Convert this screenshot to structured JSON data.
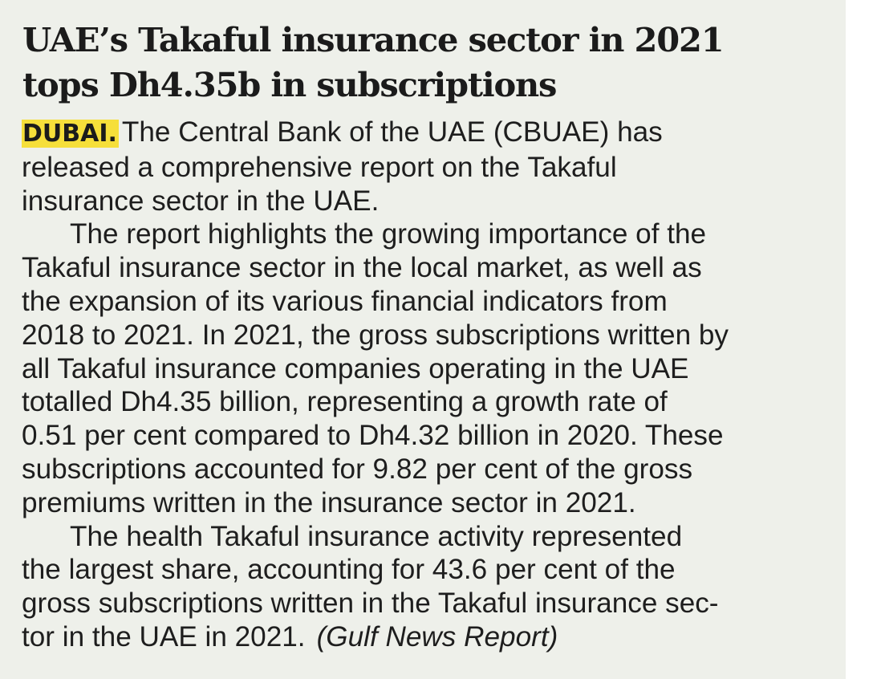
{
  "headline": {
    "lines": [
      "UAE’s Takaful insurance sector in 2021",
      "tops Dh4.35b in subscriptions"
    ]
  },
  "article": {
    "dateline": "DUBAI.",
    "lines": [
      "The Central Bank of the UAE (CBUAE) has",
      "released a comprehensive report on the Takaful",
      "insurance sector in the UAE.",
      "The report highlights the growing importance of the",
      "Takaful insurance sector in the local market, as well as",
      "the expansion of its various financial indicators from",
      "2018 to 2021. In 2021, the gross subscriptions written by",
      "all Takaful insurance companies operating in the UAE",
      "totalled Dh4.35 billion, representing a growth rate of",
      "0.51 per cent compared to Dh4.32 billion in 2020. These",
      "subscriptions accounted for 9.82 per cent of the gross",
      "premiums written in the insurance sector in 2021.",
      "The health Takaful insurance activity represented",
      "the largest share, accounting for 43.6 per cent of the",
      "gross subscriptions written in the Takaful insurance sec-",
      "tor in the UAE in 2021."
    ],
    "credit": "(Gulf News Report)"
  },
  "colors": {
    "paper": "#eef0ea",
    "highlight": "#f6df3a",
    "text": "#1e1e1e"
  }
}
